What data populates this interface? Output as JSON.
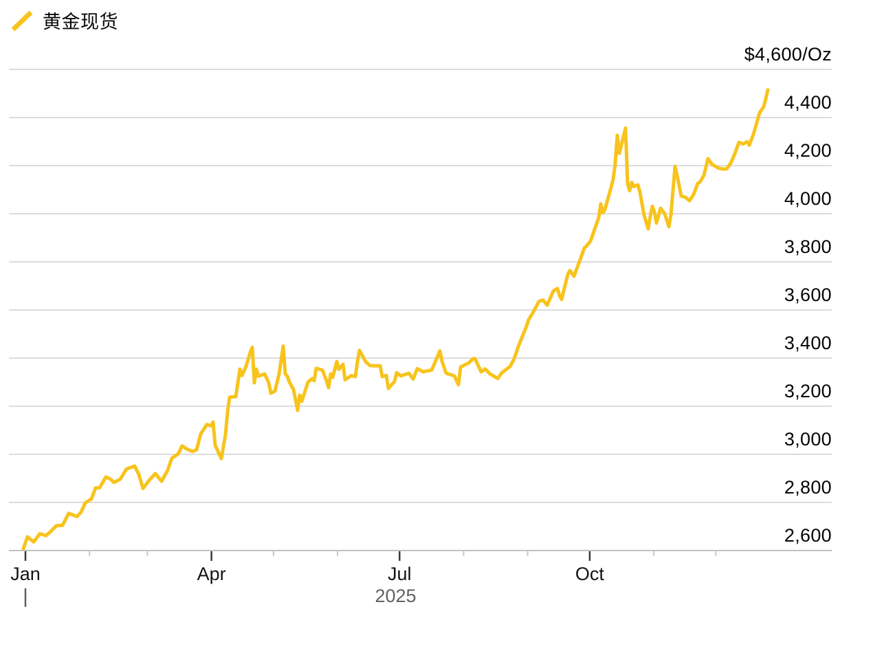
{
  "legend": {
    "label": "黄金现货"
  },
  "chart_data": {
    "type": "line",
    "title": "黄金现货",
    "unit": "$/Oz",
    "grid": true,
    "legend_position": "top-left",
    "x_axis": {
      "year_label": "2025",
      "month_start_days": [
        1,
        32,
        60,
        91,
        121,
        152,
        182,
        213,
        244,
        274,
        305,
        335
      ],
      "tick_labels": [
        "Jan",
        "",
        "",
        "Apr",
        "",
        "",
        "Jul",
        "",
        "",
        "Oct",
        "",
        ""
      ]
    },
    "y_axis": {
      "min": 2600,
      "max": 4600,
      "step": 200,
      "top_label": "$4,600/Oz",
      "tick_labels_top_to_bottom": [
        "$4,600/Oz",
        "4,400",
        "4,200",
        "4,000",
        "3,800",
        "3,600",
        "3,400",
        "3,200",
        "3,000",
        "2,800",
        "2,600"
      ]
    },
    "series": [
      {
        "name": "黄金现货",
        "color": "#F8C31C",
        "points_day_value": [
          [
            1,
            2608
          ],
          [
            3,
            2657
          ],
          [
            6,
            2636
          ],
          [
            9,
            2670
          ],
          [
            12,
            2662
          ],
          [
            14,
            2677
          ],
          [
            17,
            2703
          ],
          [
            20,
            2705
          ],
          [
            23,
            2755
          ],
          [
            27,
            2741
          ],
          [
            29,
            2760
          ],
          [
            31,
            2798
          ],
          [
            34,
            2815
          ],
          [
            36,
            2860
          ],
          [
            38,
            2861
          ],
          [
            41,
            2906
          ],
          [
            43,
            2898
          ],
          [
            45,
            2883
          ],
          [
            48,
            2897
          ],
          [
            51,
            2939
          ],
          [
            55,
            2951
          ],
          [
            57,
            2916
          ],
          [
            59,
            2858
          ],
          [
            62,
            2892
          ],
          [
            65,
            2920
          ],
          [
            68,
            2888
          ],
          [
            71,
            2934
          ],
          [
            73,
            2984
          ],
          [
            76,
            3001
          ],
          [
            78,
            3035
          ],
          [
            80,
            3023
          ],
          [
            83,
            3012
          ],
          [
            85,
            3019
          ],
          [
            87,
            3085
          ],
          [
            90,
            3124
          ],
          [
            92,
            3118
          ],
          [
            93,
            3134
          ],
          [
            94,
            3038
          ],
          [
            97,
            2982
          ],
          [
            99,
            3082
          ],
          [
            100,
            3175
          ],
          [
            101,
            3237
          ],
          [
            104,
            3240
          ],
          [
            106,
            3354
          ],
          [
            107,
            3327
          ],
          [
            109,
            3366
          ],
          [
            111,
            3424
          ],
          [
            112,
            3445
          ],
          [
            113,
            3297
          ],
          [
            114,
            3354
          ],
          [
            115,
            3325
          ],
          [
            118,
            3334
          ],
          [
            120,
            3297
          ],
          [
            121,
            3254
          ],
          [
            123,
            3263
          ],
          [
            125,
            3334
          ],
          [
            127,
            3450
          ],
          [
            128,
            3334
          ],
          [
            129,
            3325
          ],
          [
            130,
            3300
          ],
          [
            132,
            3269
          ],
          [
            134,
            3183
          ],
          [
            135,
            3246
          ],
          [
            136,
            3220
          ],
          [
            139,
            3300
          ],
          [
            141,
            3315
          ],
          [
            142,
            3306
          ],
          [
            143,
            3357
          ],
          [
            146,
            3350
          ],
          [
            148,
            3306
          ],
          [
            149,
            3277
          ],
          [
            150,
            3334
          ],
          [
            151,
            3320
          ],
          [
            153,
            3386
          ],
          [
            154,
            3353
          ],
          [
            156,
            3375
          ],
          [
            157,
            3310
          ],
          [
            160,
            3327
          ],
          [
            162,
            3323
          ],
          [
            163,
            3386
          ],
          [
            164,
            3432
          ],
          [
            167,
            3385
          ],
          [
            169,
            3369
          ],
          [
            171,
            3368
          ],
          [
            174,
            3368
          ],
          [
            175,
            3323
          ],
          [
            177,
            3328
          ],
          [
            178,
            3274
          ],
          [
            181,
            3303
          ],
          [
            182,
            3339
          ],
          [
            184,
            3326
          ],
          [
            188,
            3337
          ],
          [
            190,
            3313
          ],
          [
            192,
            3356
          ],
          [
            195,
            3343
          ],
          [
            197,
            3347
          ],
          [
            199,
            3350
          ],
          [
            203,
            3430
          ],
          [
            204,
            3387
          ],
          [
            206,
            3337
          ],
          [
            210,
            3326
          ],
          [
            212,
            3289
          ],
          [
            213,
            3363
          ],
          [
            217,
            3380
          ],
          [
            219,
            3397
          ],
          [
            220,
            3398
          ],
          [
            223,
            3343
          ],
          [
            225,
            3355
          ],
          [
            227,
            3336
          ],
          [
            231,
            3315
          ],
          [
            233,
            3339
          ],
          [
            237,
            3365
          ],
          [
            239,
            3397
          ],
          [
            241,
            3448
          ],
          [
            245,
            3533
          ],
          [
            246,
            3560
          ],
          [
            248,
            3587
          ],
          [
            251,
            3636
          ],
          [
            253,
            3641
          ],
          [
            255,
            3620
          ],
          [
            258,
            3679
          ],
          [
            260,
            3689
          ],
          [
            261,
            3660
          ],
          [
            262,
            3644
          ],
          [
            265,
            3748
          ],
          [
            266,
            3764
          ],
          [
            268,
            3740
          ],
          [
            272,
            3833
          ],
          [
            273,
            3858
          ],
          [
            274,
            3865
          ],
          [
            276,
            3886
          ],
          [
            279,
            3960
          ],
          [
            280,
            3983
          ],
          [
            281,
            4041
          ],
          [
            282,
            4004
          ],
          [
            283,
            4018
          ],
          [
            286,
            4110
          ],
          [
            287,
            4143
          ],
          [
            288,
            4209
          ],
          [
            289,
            4326
          ],
          [
            290,
            4251
          ],
          [
            293,
            4356
          ],
          [
            294,
            4125
          ],
          [
            295,
            4096
          ],
          [
            296,
            4130
          ],
          [
            297,
            4113
          ],
          [
            299,
            4120
          ],
          [
            300,
            4089
          ],
          [
            302,
            3994
          ],
          [
            304,
            3937
          ],
          [
            305,
            3990
          ],
          [
            306,
            4031
          ],
          [
            307,
            4008
          ],
          [
            308,
            3961
          ],
          [
            310,
            4023
          ],
          [
            312,
            4000
          ],
          [
            314,
            3946
          ],
          [
            315,
            3994
          ],
          [
            317,
            4197
          ],
          [
            318,
            4160
          ],
          [
            320,
            4074
          ],
          [
            322,
            4069
          ],
          [
            324,
            4054
          ],
          [
            326,
            4080
          ],
          [
            328,
            4126
          ],
          [
            329,
            4131
          ],
          [
            331,
            4160
          ],
          [
            333,
            4229
          ],
          [
            335,
            4205
          ],
          [
            338,
            4190
          ],
          [
            340,
            4186
          ],
          [
            342,
            4186
          ],
          [
            344,
            4210
          ],
          [
            346,
            4250
          ],
          [
            348,
            4297
          ],
          [
            350,
            4290
          ],
          [
            352,
            4300
          ],
          [
            353,
            4285
          ],
          [
            355,
            4330
          ],
          [
            356,
            4360
          ],
          [
            357,
            4390
          ],
          [
            358,
            4420
          ],
          [
            359,
            4432
          ],
          [
            360,
            4445
          ],
          [
            361,
            4478
          ],
          [
            362,
            4515
          ]
        ]
      }
    ]
  }
}
